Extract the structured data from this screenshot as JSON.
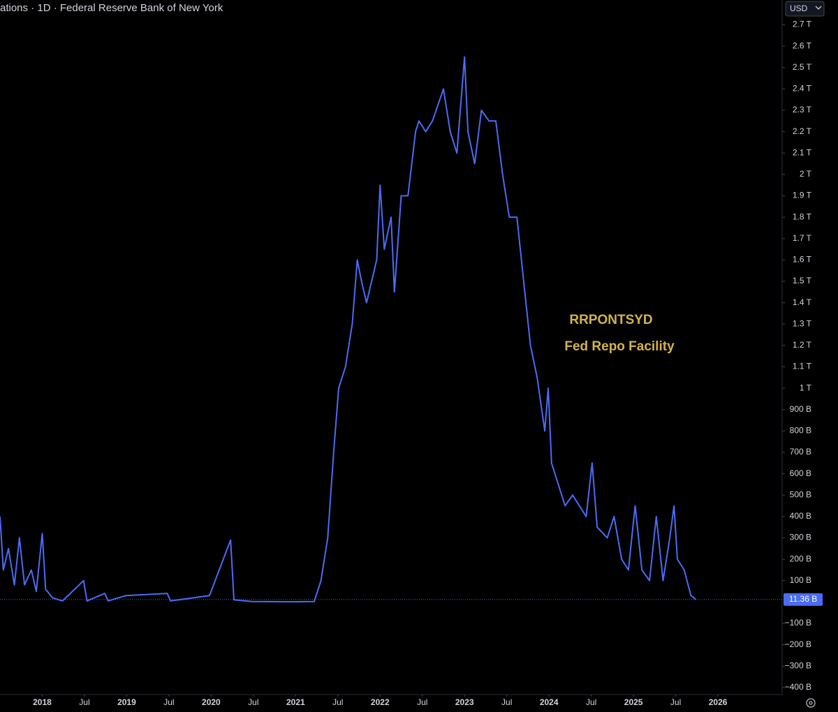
{
  "chart_data": {
    "type": "line",
    "title": "ations · 1D · Federal Reserve Bank of New York",
    "currency": "USD",
    "annotations": [
      "RRPONTSYD",
      "Fed Repo Facility"
    ],
    "color": "#4a6cf7",
    "grid": false,
    "x": [
      2017.5,
      2017.54,
      2017.6,
      2017.67,
      2017.73,
      2017.79,
      2017.87,
      2017.93,
      2018.0,
      2018.04,
      2018.12,
      2018.24,
      2018.49,
      2018.53,
      2018.74,
      2018.78,
      2018.99,
      2019.48,
      2019.52,
      2019.98,
      2020.23,
      2020.27,
      2020.48,
      2020.97,
      2021.22,
      2021.3,
      2021.38,
      2021.45,
      2021.51,
      2021.59,
      2021.67,
      2021.73,
      2021.78,
      2021.84,
      2021.96,
      2022.0,
      2022.05,
      2022.13,
      2022.17,
      2022.25,
      2022.33,
      2022.42,
      2022.46,
      2022.54,
      2022.62,
      2022.75,
      2022.83,
      2022.91,
      2023.0,
      2023.04,
      2023.12,
      2023.2,
      2023.29,
      2023.37,
      2023.45,
      2023.53,
      2023.62,
      2023.7,
      2023.78,
      2023.86,
      2023.95,
      2023.99,
      2024.03,
      2024.11,
      2024.19,
      2024.28,
      2024.36,
      2024.44,
      2024.51,
      2024.57,
      2024.69,
      2024.77,
      2024.86,
      2024.94,
      2025.02,
      2025.1,
      2025.19,
      2025.27,
      2025.35,
      2025.43,
      2025.48,
      2025.52,
      2025.6,
      2025.68,
      2025.74
    ],
    "values": [
      400,
      150,
      250,
      80,
      300,
      80,
      150,
      50,
      320,
      60,
      20,
      5,
      100,
      5,
      40,
      5,
      30,
      40,
      5,
      30,
      290,
      10,
      2,
      1,
      2,
      100,
      300,
      700,
      1000,
      1100,
      1300,
      1600,
      1500,
      1400,
      1600,
      1950,
      1650,
      1800,
      1450,
      1900,
      1900,
      2200,
      2250,
      2200,
      2250,
      2400,
      2200,
      2100,
      2550,
      2200,
      2050,
      2300,
      2250,
      2250,
      2000,
      1800,
      1800,
      1500,
      1200,
      1050,
      800,
      1000,
      650,
      550,
      450,
      500,
      450,
      400,
      650,
      350,
      300,
      400,
      200,
      150,
      450,
      150,
      100,
      400,
      100,
      300,
      450,
      200,
      150,
      30,
      11.36
    ],
    "last_value": {
      "value": 11.36,
      "label": "11.36 B"
    },
    "xlim": [
      2017.5,
      2026.76
    ],
    "xticks": [
      {
        "value": 2018,
        "label": "2018"
      },
      {
        "value": 2018.5,
        "label": "Jul"
      },
      {
        "value": 2019,
        "label": "2019"
      },
      {
        "value": 2019.5,
        "label": "Jul"
      },
      {
        "value": 2020,
        "label": "2020"
      },
      {
        "value": 2020.5,
        "label": "Jul"
      },
      {
        "value": 2021,
        "label": "2021"
      },
      {
        "value": 2021.5,
        "label": "Jul"
      },
      {
        "value": 2022,
        "label": "2022"
      },
      {
        "value": 2022.5,
        "label": "Jul"
      },
      {
        "value": 2023,
        "label": "2023"
      },
      {
        "value": 2023.5,
        "label": "Jul"
      },
      {
        "value": 2024,
        "label": "2024"
      },
      {
        "value": 2024.5,
        "label": "Jul"
      },
      {
        "value": 2025,
        "label": "2025"
      },
      {
        "value": 2025.5,
        "label": "Jul"
      },
      {
        "value": 2026,
        "label": "2026"
      }
    ],
    "ylim": [
      -433,
      2816
    ],
    "yticks": [
      {
        "value": 2700,
        "label": "2.7 T"
      },
      {
        "value": 2600,
        "label": "2.6 T"
      },
      {
        "value": 2500,
        "label": "2.5 T"
      },
      {
        "value": 2400,
        "label": "2.4 T"
      },
      {
        "value": 2300,
        "label": "2.3 T"
      },
      {
        "value": 2200,
        "label": "2.2 T"
      },
      {
        "value": 2100,
        "label": "2.1 T"
      },
      {
        "value": 2000,
        "label": "2 T"
      },
      {
        "value": 1900,
        "label": "1.9 T"
      },
      {
        "value": 1800,
        "label": "1.8 T"
      },
      {
        "value": 1700,
        "label": "1.7 T"
      },
      {
        "value": 1600,
        "label": "1.6 T"
      },
      {
        "value": 1500,
        "label": "1.5 T"
      },
      {
        "value": 1400,
        "label": "1.4 T"
      },
      {
        "value": 1300,
        "label": "1.3 T"
      },
      {
        "value": 1200,
        "label": "1.2 T"
      },
      {
        "value": 1100,
        "label": "1.1 T"
      },
      {
        "value": 1000,
        "label": "1 T"
      },
      {
        "value": 900,
        "label": "900 B"
      },
      {
        "value": 800,
        "label": "800 B"
      },
      {
        "value": 700,
        "label": "700 B"
      },
      {
        "value": 600,
        "label": "600 B"
      },
      {
        "value": 500,
        "label": "500 B"
      },
      {
        "value": 400,
        "label": "400 B"
      },
      {
        "value": 300,
        "label": "300 B"
      },
      {
        "value": 200,
        "label": "200 B"
      },
      {
        "value": 100,
        "label": "100 B"
      },
      {
        "value": -100,
        "label": "−100 B"
      },
      {
        "value": -200,
        "label": "−200 B"
      },
      {
        "value": -300,
        "label": "−300 B"
      },
      {
        "value": -400,
        "label": "−400 B"
      }
    ]
  }
}
